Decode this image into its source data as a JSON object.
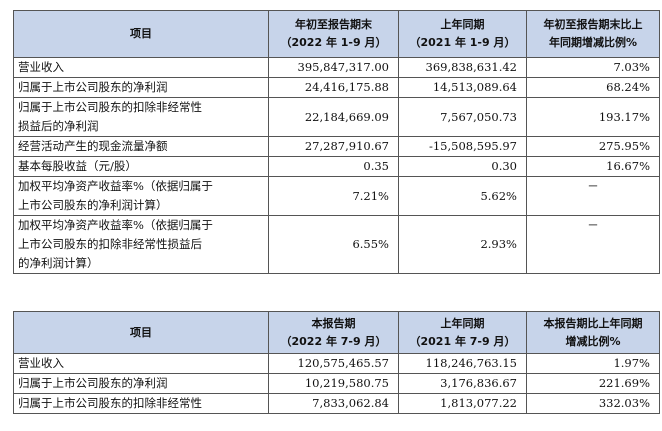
{
  "table1": {
    "headers": {
      "item": "项目",
      "ytd_line1": "年初至报告期末",
      "ytd_line2": "（2022 年 1-9 月）",
      "prior_line1": "上年同期",
      "prior_line2": "（2021 年 1-9 月）",
      "change_line1": "年初至报告期末比上",
      "change_line2": "年同期增减比例%"
    },
    "rows": [
      {
        "label": "营业收入",
        "current": "395,847,317.00",
        "prior": "369,838,631.42",
        "change": "7.03%"
      },
      {
        "label": "归属于上市公司股东的净利润",
        "current": "24,416,175.88",
        "prior": "14,513,089.64",
        "change": "68.24%"
      },
      {
        "label_line1": "归属于上市公司股东的扣除非经常性",
        "label_line2": "损益后的净利润",
        "current": "22,184,669.09",
        "prior": "7,567,050.73",
        "change": "193.17%"
      },
      {
        "label": "经营活动产生的现金流量净额",
        "current": "27,287,910.67",
        "prior": "-15,508,595.97",
        "change": "275.95%"
      },
      {
        "label": "基本每股收益（元/股）",
        "current": "0.35",
        "prior": "0.30",
        "change": "16.67%"
      },
      {
        "label_line1": "加权平均净资产收益率%（依据归属于",
        "label_line2": "上市公司股东的净利润计算）",
        "current": "7.21%",
        "prior": "5.62%",
        "change": "－"
      },
      {
        "label_line1": "加权平均净资产收益率%（依据归属于",
        "label_line2": "上市公司股东的扣除非经常性损益后",
        "label_line3": "的净利润计算）",
        "current": "6.55%",
        "prior": "2.93%",
        "change": "－"
      }
    ]
  },
  "table2": {
    "headers": {
      "item": "项目",
      "cur_line1": "本报告期",
      "cur_line2": "（2022 年 7-9 月）",
      "prior_line1": "上年同期",
      "prior_line2": "（2021 年 7-9 月）",
      "change_line1": "本报告期比上年同期",
      "change_line2": "增减比例%"
    },
    "rows": [
      {
        "label": "营业收入",
        "current": "120,575,465.57",
        "prior": "118,246,763.15",
        "change": "1.97%"
      },
      {
        "label": "归属于上市公司股东的净利润",
        "current": "10,219,580.75",
        "prior": "3,176,836.67",
        "change": "221.69%"
      },
      {
        "label": "归属于上市公司股东的扣除非经常性",
        "current": "7,833,062.84",
        "prior": "1,813,077.22",
        "change": "332.03%"
      }
    ]
  }
}
